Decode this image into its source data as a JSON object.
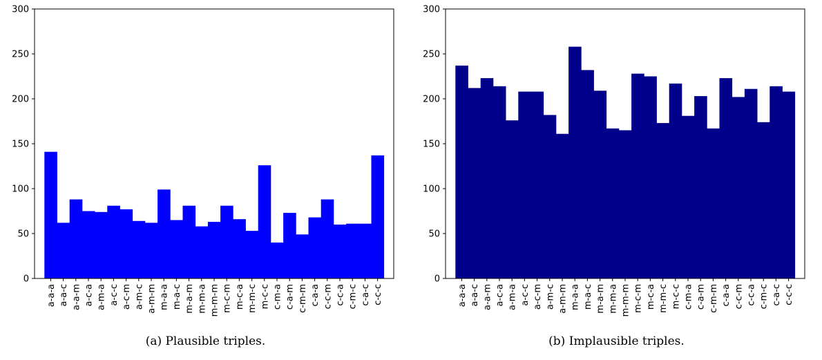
{
  "chart_data": [
    {
      "type": "bar",
      "caption": "(a) Plausible triples.",
      "color": "#0000ff",
      "ylim": [
        0,
        300
      ],
      "yticks": [
        0,
        50,
        100,
        150,
        200,
        250,
        300
      ],
      "categories": [
        "a-a-a",
        "a-a-c",
        "a-a-m",
        "a-c-a",
        "a-m-a",
        "a-c-c",
        "a-c-m",
        "a-m-c",
        "a-m-m",
        "m-a-a",
        "m-a-c",
        "m-a-m",
        "m-m-a",
        "m-m-m",
        "m-c-m",
        "m-c-a",
        "m-m-c",
        "m-c-c",
        "c-m-a",
        "c-a-m",
        "c-m-m",
        "c-a-a",
        "c-c-m",
        "c-c-a",
        "c-m-c",
        "c-a-c",
        "c-c-c"
      ],
      "values": [
        141,
        62,
        88,
        75,
        74,
        81,
        77,
        64,
        62,
        99,
        65,
        81,
        58,
        63,
        81,
        66,
        53,
        126,
        40,
        73,
        49,
        68,
        88,
        60,
        61,
        61,
        137
      ]
    },
    {
      "type": "bar",
      "caption": "(b) Implausible triples.",
      "color": "#00008b",
      "ylim": [
        0,
        300
      ],
      "yticks": [
        0,
        50,
        100,
        150,
        200,
        250,
        300
      ],
      "categories": [
        "a-a-a",
        "a-a-c",
        "a-a-m",
        "a-c-a",
        "a-m-a",
        "a-c-c",
        "a-c-m",
        "a-m-c",
        "a-m-m",
        "m-a-a",
        "m-a-c",
        "m-a-m",
        "m-m-a",
        "m-m-m",
        "m-c-m",
        "m-c-a",
        "m-m-c",
        "m-c-c",
        "c-m-a",
        "c-a-m",
        "c-m-m",
        "c-a-a",
        "c-c-m",
        "c-c-a",
        "c-m-c",
        "c-a-c",
        "c-c-c"
      ],
      "values": [
        237,
        212,
        223,
        214,
        176,
        208,
        208,
        182,
        161,
        258,
        232,
        209,
        167,
        165,
        228,
        225,
        173,
        217,
        181,
        203,
        167,
        223,
        202,
        211,
        174,
        214,
        208
      ]
    }
  ]
}
